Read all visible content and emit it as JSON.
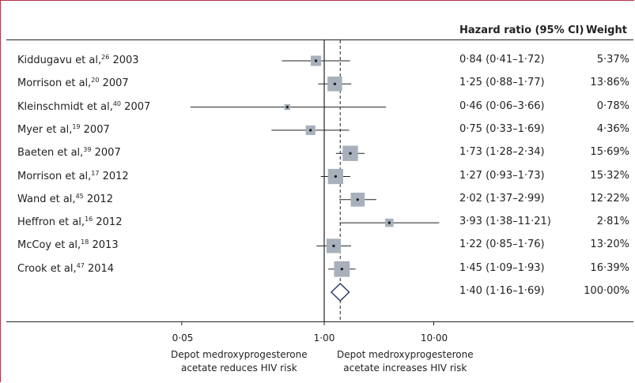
{
  "chart_data": {
    "type": "forest",
    "columns": {
      "effect": "Hazard ratio (95% CI)",
      "weight": "Weight"
    },
    "x_scale": "log",
    "x_ticks": [
      {
        "value": 0.05,
        "label": "0·05"
      },
      {
        "value": 1.0,
        "label": "1·00"
      },
      {
        "value": 10.0,
        "label": "10·00"
      }
    ],
    "reference_line": 1.0,
    "pooled_line": 1.4,
    "x_label_left": [
      "Depot medroxyprogesterone",
      "acetate reduces HIV risk"
    ],
    "x_label_right": [
      "Depot medroxyprogesterone",
      "acetate increases HIV risk"
    ],
    "studies": [
      {
        "author": "Kiddugavu et al,",
        "ref": "26",
        "year": "2003",
        "hr": 0.84,
        "lo": 0.41,
        "hi": 1.72,
        "hr_text": "0·84 (0·41–1·72)",
        "weight_text": "5·37%",
        "weight": 5.37
      },
      {
        "author": "Morrison et al,",
        "ref": "20",
        "year": "2007",
        "hr": 1.25,
        "lo": 0.88,
        "hi": 1.77,
        "hr_text": "1·25 (0·88–1·77)",
        "weight_text": "13·86%",
        "weight": 13.86
      },
      {
        "author": "Kleinschmidt et al,",
        "ref": "40",
        "year": "2007",
        "hr": 0.46,
        "lo": 0.06,
        "hi": 3.66,
        "hr_text": "0·46 (0·06–3·66)",
        "weight_text": "0·78%",
        "weight": 0.78
      },
      {
        "author": "Myer et al,",
        "ref": "19",
        "year": "2007",
        "hr": 0.75,
        "lo": 0.33,
        "hi": 1.69,
        "hr_text": "0·75 (0·33–1·69)",
        "weight_text": "4·36%",
        "weight": 4.36
      },
      {
        "author": "Baeten et al,",
        "ref": "39",
        "year": "2007",
        "hr": 1.73,
        "lo": 1.28,
        "hi": 2.34,
        "hr_text": "1·73 (1·28–2·34)",
        "weight_text": "15·69%",
        "weight": 15.69
      },
      {
        "author": "Morrison et al,",
        "ref": "17",
        "year": "2012",
        "hr": 1.27,
        "lo": 0.93,
        "hi": 1.73,
        "hr_text": "1·27 (0·93–1·73)",
        "weight_text": "15·32%",
        "weight": 15.32
      },
      {
        "author": "Wand et al,",
        "ref": "45",
        "year": "2012",
        "hr": 2.02,
        "lo": 1.37,
        "hi": 2.99,
        "hr_text": "2·02 (1·37–2·99)",
        "weight_text": "12·22%",
        "weight": 12.22
      },
      {
        "author": "Heffron et al,",
        "ref": "16",
        "year": "2012",
        "hr": 3.93,
        "lo": 1.38,
        "hi": 11.21,
        "hr_text": "3·93 (1·38–11·21)",
        "weight_text": "2·81%",
        "weight": 2.81
      },
      {
        "author": "McCoy et al,",
        "ref": "18",
        "year": "2013",
        "hr": 1.22,
        "lo": 0.85,
        "hi": 1.76,
        "hr_text": "1·22 (0·85–1·76)",
        "weight_text": "13·20%",
        "weight": 13.2
      },
      {
        "author": "Crook et al,",
        "ref": "47",
        "year": "2014",
        "hr": 1.45,
        "lo": 1.09,
        "hi": 1.93,
        "hr_text": "1·45 (1·09–1·93)",
        "weight_text": "16·39%",
        "weight": 16.39
      }
    ],
    "pooled": {
      "hr": 1.4,
      "lo": 1.16,
      "hi": 1.69,
      "hr_text": "1·40 (1·16–1·69)",
      "weight_text": "100·00%"
    },
    "colors": {
      "box": "#a7b0bb",
      "diamond": "#1f2a5c",
      "frame": "#b3324a",
      "line": "#222222"
    }
  }
}
